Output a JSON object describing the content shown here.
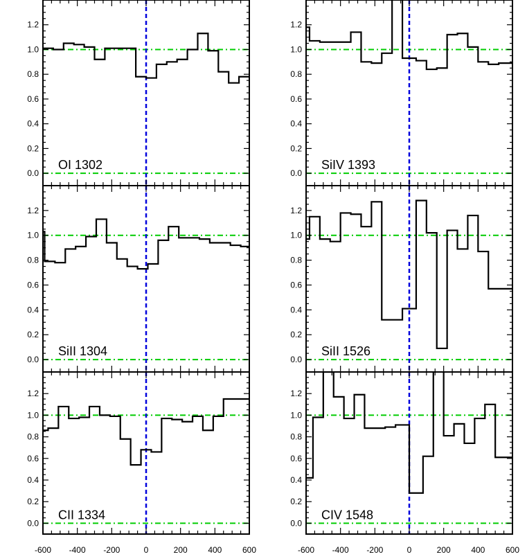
{
  "chart_data": [
    {
      "type": "line",
      "label": "OI 1302",
      "xlim": [
        -600,
        600
      ],
      "ylim": [
        -0.1,
        1.4
      ],
      "x_ticks": [
        "-600",
        "-400",
        "-200",
        "0",
        "200",
        "400",
        "600"
      ],
      "y_ticks": [
        "0.0",
        "0.2",
        "0.4",
        "0.6",
        "0.8",
        "1.0",
        "1.2"
      ],
      "reference_lines": {
        "y": [
          0.0,
          1.0
        ],
        "x": [
          0
        ]
      },
      "edges": [
        -600,
        -540,
        -480,
        -420,
        -360,
        -300,
        -240,
        -180,
        -120,
        -60,
        0,
        60,
        120,
        180,
        240,
        300,
        360,
        420,
        480,
        540,
        600
      ],
      "values": [
        1.01,
        1.0,
        1.05,
        1.04,
        1.02,
        0.92,
        1.01,
        1.01,
        1.01,
        0.78,
        0.77,
        0.88,
        0.9,
        0.92,
        1.0,
        1.13,
        0.99,
        0.82,
        0.73,
        0.78
      ]
    },
    {
      "type": "line",
      "label": "SiIV 1393",
      "xlim": [
        -600,
        600
      ],
      "ylim": [
        -0.1,
        1.4
      ],
      "x_ticks": [
        "-600",
        "-400",
        "-200",
        "0",
        "200",
        "400",
        "600"
      ],
      "y_ticks": [
        "0.0",
        "0.2",
        "0.4",
        "0.6",
        "0.8",
        "1.0",
        "1.2"
      ],
      "reference_lines": {
        "y": [
          0.0,
          1.0
        ],
        "x": [
          0
        ]
      },
      "edges": [
        -600,
        -580,
        -520,
        -460,
        -400,
        -340,
        -280,
        -220,
        -160,
        -100,
        -40,
        0,
        40,
        100,
        160,
        220,
        280,
        340,
        400,
        460,
        520,
        580,
        600
      ],
      "values": [
        1.18,
        1.07,
        1.06,
        1.06,
        1.06,
        1.14,
        0.9,
        0.89,
        0.97,
        1.45,
        0.93,
        0.93,
        0.91,
        0.84,
        0.85,
        1.12,
        1.13,
        1.02,
        0.9,
        0.88,
        0.89,
        0.89
      ]
    },
    {
      "type": "line",
      "label": "SiII 1304",
      "xlim": [
        -600,
        600
      ],
      "ylim": [
        -0.1,
        1.4
      ],
      "x_ticks": [
        "-600",
        "-400",
        "-200",
        "0",
        "200",
        "400",
        "600"
      ],
      "y_ticks": [
        "0.0",
        "0.2",
        "0.4",
        "0.6",
        "0.8",
        "1.0",
        "1.2"
      ],
      "reference_lines": {
        "y": [
          0.0,
          1.0
        ],
        "x": [
          0
        ]
      },
      "edges": [
        -600,
        -590,
        -530,
        -470,
        -410,
        -350,
        -290,
        -230,
        -170,
        -110,
        -50,
        10,
        70,
        130,
        190,
        250,
        310,
        370,
        430,
        490,
        550,
        600
      ],
      "values": [
        1.03,
        0.79,
        0.78,
        0.89,
        0.91,
        0.99,
        1.13,
        0.94,
        0.81,
        0.75,
        0.73,
        0.77,
        0.96,
        1.07,
        0.98,
        0.98,
        0.97,
        0.94,
        0.94,
        0.92,
        0.91
      ]
    },
    {
      "type": "line",
      "label": "SiII 1526",
      "xlim": [
        -600,
        600
      ],
      "ylim": [
        -0.1,
        1.4
      ],
      "x_ticks": [
        "-600",
        "-400",
        "-200",
        "0",
        "200",
        "400",
        "600"
      ],
      "y_ticks": [
        "0.0",
        "0.2",
        "0.4",
        "0.6",
        "0.8",
        "1.0",
        "1.2"
      ],
      "reference_lines": {
        "y": [
          0.0,
          1.0
        ],
        "x": [
          0
        ]
      },
      "edges": [
        -600,
        -580,
        -520,
        -460,
        -400,
        -340,
        -280,
        -220,
        -160,
        -100,
        -40,
        0,
        40,
        100,
        160,
        220,
        280,
        340,
        400,
        460,
        520,
        580,
        600
      ],
      "values": [
        0.97,
        1.15,
        0.97,
        0.95,
        1.18,
        1.17,
        1.07,
        1.27,
        0.32,
        0.32,
        0.41,
        0.41,
        1.28,
        1.02,
        0.09,
        1.04,
        0.89,
        1.16,
        0.87,
        0.57,
        0.57,
        0.57
      ]
    },
    {
      "type": "line",
      "label": "CII 1334",
      "xlim": [
        -600,
        600
      ],
      "ylim": [
        -0.1,
        1.4
      ],
      "x_ticks": [
        "-600",
        "-400",
        "-200",
        "0",
        "200",
        "400",
        "600"
      ],
      "y_ticks": [
        "0.0",
        "0.2",
        "0.4",
        "0.6",
        "0.8",
        "1.0",
        "1.2"
      ],
      "reference_lines": {
        "y": [
          0.0,
          1.0
        ],
        "x": [
          0
        ]
      },
      "edges": [
        -600,
        -570,
        -510,
        -450,
        -390,
        -330,
        -270,
        -210,
        -150,
        -90,
        -30,
        30,
        90,
        150,
        210,
        270,
        330,
        390,
        450,
        510,
        570,
        600
      ],
      "values": [
        0.86,
        0.88,
        1.08,
        0.97,
        0.98,
        1.08,
        1.0,
        0.99,
        0.78,
        0.54,
        0.68,
        0.66,
        0.97,
        0.96,
        0.94,
        0.99,
        0.86,
        0.99,
        1.15,
        1.15,
        1.15
      ]
    },
    {
      "type": "line",
      "label": "CIV 1548",
      "xlim": [
        -600,
        600
      ],
      "ylim": [
        -0.1,
        1.4
      ],
      "x_ticks": [
        "-600",
        "-400",
        "-200",
        "0",
        "200",
        "400",
        "600"
      ],
      "y_ticks": [
        "0.0",
        "0.2",
        "0.4",
        "0.6",
        "0.8",
        "1.0",
        "1.2"
      ],
      "reference_lines": {
        "y": [
          0.0,
          1.0
        ],
        "x": [
          0
        ]
      },
      "edges": [
        -600,
        -560,
        -500,
        -440,
        -380,
        -320,
        -260,
        -200,
        -140,
        -80,
        -20,
        0,
        20,
        80,
        140,
        200,
        260,
        320,
        380,
        440,
        500,
        560,
        600
      ],
      "values": [
        0.42,
        0.98,
        1.4,
        1.17,
        0.97,
        1.19,
        0.88,
        0.88,
        0.89,
        0.91,
        0.91,
        0.28,
        0.28,
        0.62,
        1.48,
        0.81,
        0.92,
        0.74,
        0.97,
        1.1,
        0.61,
        0.61
      ]
    }
  ],
  "colors": {
    "data_line": "#000000",
    "zero_line": "#00cc00",
    "center_line": "#0000dd",
    "axis": "#000000"
  }
}
